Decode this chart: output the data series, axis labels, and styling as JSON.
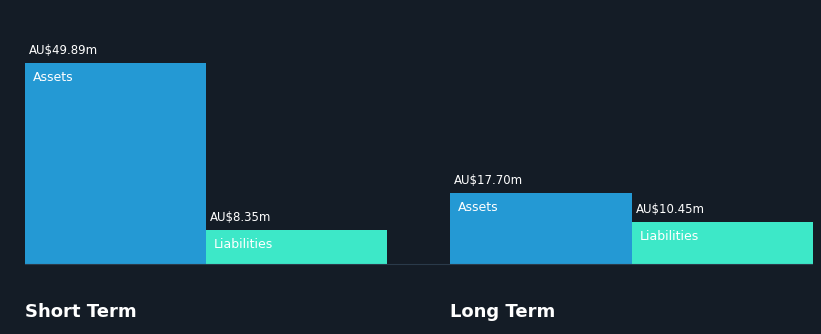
{
  "background_color": "#141c26",
  "text_color": "#ffffff",
  "liabilities_label_color": "#1a3a3a",
  "groups": [
    {
      "name": "Short Term",
      "bars": [
        {
          "label": "Assets",
          "value": 49.89,
          "value_str": "AU$49.89m",
          "color": "#2499d4"
        },
        {
          "label": "Liabilities",
          "value": 8.35,
          "value_str": "AU$8.35m",
          "color": "#3de8c8"
        }
      ]
    },
    {
      "name": "Long Term",
      "bars": [
        {
          "label": "Assets",
          "value": 17.7,
          "value_str": "AU$17.70m",
          "color": "#2499d4"
        },
        {
          "label": "Liabilities",
          "value": 10.45,
          "value_str": "AU$10.45m",
          "color": "#3de8c8"
        }
      ]
    }
  ],
  "max_value": 49.89,
  "baseline_color": "#2a3a4a",
  "value_label_fontsize": 8.5,
  "bar_label_fontsize": 9,
  "group_label_fontsize": 13,
  "figsize": [
    8.21,
    3.34
  ],
  "dpi": 100
}
